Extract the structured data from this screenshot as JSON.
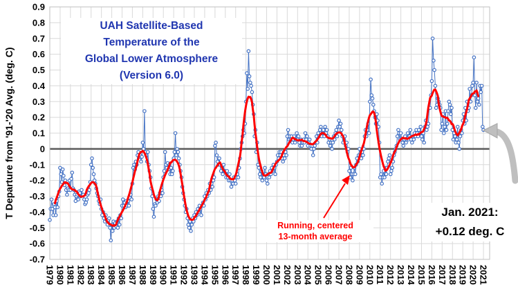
{
  "colors": {
    "title_blue": "#2036b0",
    "series_blue": "#4472c4",
    "series_red": "#ff0000",
    "grid": "#d9d9d9",
    "frame": "#bfbfbf",
    "zero_line": "#595959",
    "arrow_gray": "#bfbfbf",
    "arrow_gray_edge": "#a6a6a6",
    "tick_text": "#000000"
  },
  "chart_data": {
    "type": "line",
    "title_lines": [
      "UAH Satellite-Based",
      "Temperature of the",
      "Global Lower Atmosphere",
      "(Version 6.0)"
    ],
    "ylabel": "T Departure from '91-'20 Avg. (deg. C)",
    "ylim": [
      -0.7,
      0.9
    ],
    "y_tick_step": 0.1,
    "x_start_year": 1979,
    "x_axis_end": 2021.6,
    "x_first_label_year": 1979,
    "x_last_label_year": 2021,
    "grid": true,
    "legend_position": "none",
    "annotations": {
      "running_avg_line1": "Running, centered",
      "running_avg_line2": "13-month average",
      "latest_line1": "Jan. 2021:",
      "latest_line2": "+0.12 deg. C"
    },
    "series": [
      {
        "name": "Monthly global lower-atmosphere temperature anomaly",
        "color": "#4472c4",
        "marker": "open-circle",
        "monthly_by_year": [
          [
            -0.45,
            -0.38,
            -0.32,
            -0.38,
            -0.42,
            -0.35,
            -0.37,
            -0.42,
            -0.33,
            -0.37,
            -0.3,
            -0.27
          ],
          [
            -0.12,
            -0.16,
            -0.21,
            -0.13,
            -0.17,
            -0.23,
            -0.2,
            -0.26,
            -0.29,
            -0.25,
            -0.26,
            -0.2
          ],
          [
            -0.26,
            -0.19,
            -0.15,
            -0.25,
            -0.26,
            -0.29,
            -0.33,
            -0.3,
            -0.29,
            -0.32,
            -0.27,
            -0.28
          ],
          [
            -0.3,
            -0.26,
            -0.29,
            -0.29,
            -0.32,
            -0.35,
            -0.34,
            -0.32,
            -0.29,
            -0.28,
            -0.26,
            -0.21
          ],
          [
            -0.1,
            -0.06,
            -0.12,
            -0.16,
            -0.2,
            -0.22,
            -0.25,
            -0.28,
            -0.3,
            -0.33,
            -0.35,
            -0.32
          ],
          [
            -0.38,
            -0.42,
            -0.4,
            -0.44,
            -0.46,
            -0.42,
            -0.45,
            -0.48,
            -0.45,
            -0.44,
            -0.5,
            -0.58
          ],
          [
            -0.48,
            -0.52,
            -0.46,
            -0.5,
            -0.47,
            -0.49,
            -0.46,
            -0.5,
            -0.44,
            -0.48,
            -0.42,
            -0.44
          ],
          [
            -0.36,
            -0.32,
            -0.36,
            -0.34,
            -0.37,
            -0.33,
            -0.36,
            -0.33,
            -0.36,
            -0.31,
            -0.29,
            -0.32
          ],
          [
            -0.22,
            -0.12,
            -0.1,
            -0.13,
            -0.08,
            -0.1,
            -0.04,
            -0.02,
            -0.05,
            -0.04,
            -0.08,
            -0.05
          ],
          [
            0.04,
            0.0,
            0.24,
            -0.02,
            -0.04,
            -0.08,
            -0.02,
            -0.1,
            -0.14,
            -0.18,
            -0.25,
            -0.3
          ],
          [
            -0.38,
            -0.43,
            -0.35,
            -0.36,
            -0.32,
            -0.34,
            -0.3,
            -0.33,
            -0.28,
            -0.3,
            -0.26,
            -0.28
          ],
          [
            -0.18,
            -0.14,
            -0.02,
            -0.1,
            -0.12,
            -0.09,
            -0.13,
            -0.1,
            -0.16,
            -0.12,
            -0.16,
            -0.14
          ],
          [
            -0.06,
            -0.02,
            0.1,
            -0.04,
            0.0,
            -0.02,
            -0.06,
            -0.1,
            -0.14,
            -0.18,
            -0.24,
            -0.28
          ],
          [
            -0.32,
            -0.36,
            -0.4,
            -0.38,
            -0.44,
            -0.48,
            -0.5,
            -0.46,
            -0.52,
            -0.48,
            -0.44,
            -0.46
          ],
          [
            -0.42,
            -0.44,
            -0.4,
            -0.42,
            -0.38,
            -0.4,
            -0.36,
            -0.38,
            -0.42,
            -0.36,
            -0.34,
            -0.36
          ],
          [
            -0.3,
            -0.32,
            -0.28,
            -0.3,
            -0.26,
            -0.28,
            -0.22,
            -0.26,
            -0.22,
            -0.24,
            -0.2,
            -0.18
          ],
          [
            0.02,
            0.04,
            -0.04,
            -0.08,
            -0.1,
            -0.06,
            -0.1,
            -0.14,
            -0.12,
            -0.16,
            -0.1,
            -0.14
          ],
          [
            -0.14,
            -0.18,
            -0.14,
            -0.18,
            -0.2,
            -0.16,
            -0.2,
            -0.24,
            -0.2,
            -0.22,
            -0.18,
            -0.2
          ],
          [
            -0.22,
            -0.18,
            -0.16,
            -0.18,
            -0.12,
            -0.06,
            0.0,
            0.04,
            0.08,
            0.12,
            0.1,
            0.16
          ],
          [
            0.3,
            0.48,
            0.38,
            0.62,
            0.46,
            0.42,
            0.4,
            0.36,
            0.28,
            0.22,
            0.08,
            0.12
          ],
          [
            -0.02,
            0.04,
            -0.1,
            -0.12,
            -0.16,
            -0.18,
            -0.14,
            -0.2,
            -0.16,
            -0.18,
            -0.12,
            -0.16
          ],
          [
            -0.2,
            -0.22,
            -0.16,
            -0.18,
            -0.14,
            -0.16,
            -0.12,
            -0.14,
            -0.1,
            -0.12,
            -0.16,
            -0.1
          ],
          [
            -0.08,
            -0.04,
            -0.06,
            -0.02,
            -0.04,
            -0.02,
            -0.06,
            -0.08,
            -0.04,
            -0.06,
            -0.02,
            -0.04
          ],
          [
            0.08,
            0.12,
            0.06,
            0.08,
            0.06,
            0.08,
            0.04,
            0.06,
            0.08,
            0.04,
            0.06,
            0.1
          ],
          [
            0.06,
            0.08,
            0.04,
            0.02,
            0.06,
            0.02,
            0.04,
            0.06,
            0.04,
            0.1,
            0.06,
            0.08
          ],
          [
            0.02,
            0.04,
            0.06,
            0.02,
            0.0,
            0.02,
            -0.04,
            0.0,
            0.02,
            0.04,
            0.08,
            0.04
          ],
          [
            0.1,
            0.08,
            0.12,
            0.14,
            0.08,
            0.1,
            0.12,
            0.08,
            0.14,
            0.1,
            0.12,
            0.08
          ],
          [
            0.04,
            0.06,
            0.02,
            0.04,
            0.0,
            0.04,
            0.08,
            0.06,
            0.1,
            0.12,
            0.08,
            0.14
          ],
          [
            0.18,
            0.14,
            0.16,
            0.12,
            0.08,
            0.04,
            0.06,
            0.08,
            0.02,
            0.04,
            -0.02,
            0.0
          ],
          [
            -0.14,
            -0.18,
            -0.12,
            -0.16,
            -0.2,
            -0.16,
            -0.12,
            -0.16,
            -0.1,
            -0.06,
            -0.08,
            -0.04
          ],
          [
            0.0,
            -0.04,
            -0.06,
            -0.02,
            -0.04,
            0.0,
            0.08,
            0.12,
            0.08,
            0.12,
            0.16,
            0.1
          ],
          [
            0.3,
            0.44,
            0.34,
            0.32,
            0.28,
            0.24,
            0.2,
            0.16,
            0.22,
            0.18,
            0.14,
            0.04
          ],
          [
            -0.18,
            -0.16,
            -0.22,
            -0.18,
            -0.14,
            -0.18,
            -0.12,
            -0.16,
            -0.12,
            -0.08,
            -0.06,
            -0.04
          ],
          [
            -0.16,
            -0.14,
            -0.12,
            -0.08,
            -0.04,
            -0.02,
            0.0,
            0.02,
            0.08,
            0.12,
            0.1,
            0.06
          ],
          [
            0.1,
            0.06,
            0.04,
            0.02,
            0.06,
            0.08,
            0.04,
            0.06,
            0.1,
            0.06,
            0.08,
            0.12
          ],
          [
            0.06,
            0.04,
            0.08,
            0.06,
            0.1,
            0.08,
            0.12,
            0.1,
            0.08,
            0.12,
            0.1,
            0.14
          ],
          [
            0.08,
            0.06,
            0.1,
            0.04,
            0.14,
            0.18,
            0.12,
            0.14,
            0.16,
            0.26,
            0.26,
            0.34
          ],
          [
            0.43,
            0.7,
            0.56,
            0.5,
            0.4,
            0.26,
            0.28,
            0.32,
            0.3,
            0.28,
            0.26,
            0.12
          ],
          [
            0.16,
            0.22,
            0.1,
            0.14,
            0.24,
            0.12,
            0.16,
            0.24,
            0.3,
            0.28,
            0.22,
            0.26
          ],
          [
            0.12,
            0.06,
            0.1,
            0.08,
            0.04,
            0.06,
            0.14,
            0.04,
            0.0,
            0.08,
            0.12,
            0.1
          ],
          [
            0.18,
            0.22,
            0.16,
            0.26,
            0.18,
            0.3,
            0.24,
            0.26,
            0.38,
            0.3,
            0.34,
            0.4
          ],
          [
            0.42,
            0.58,
            0.34,
            0.26,
            0.42,
            0.3,
            0.32,
            0.28,
            0.4,
            0.36,
            0.4,
            0.14
          ],
          [
            0.12
          ]
        ]
      },
      {
        "name": "Running, centered 13-month average",
        "color": "#ff0000",
        "derived": "centered_13_month_mean_of_monthly_series"
      }
    ]
  }
}
